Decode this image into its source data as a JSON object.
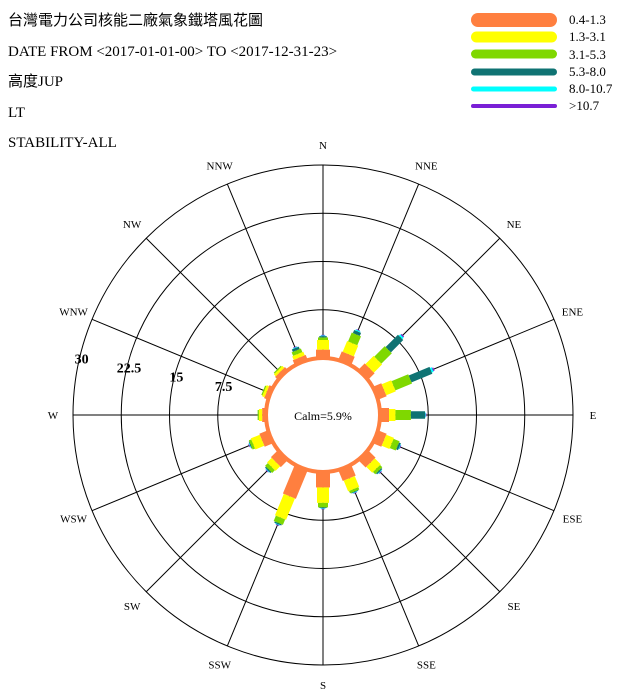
{
  "header": {
    "title": "台灣電力公司核能二廠氣象鐵塔風花圖",
    "date_range": "DATE FROM <2017-01-01-00> TO <2017-12-31-23>",
    "height": "高度JUP",
    "time": "LT",
    "stability": "STABILITY-ALL"
  },
  "legend": [
    {
      "label": "0.4-1.3",
      "color": "#ff7f3f"
    },
    {
      "label": "1.3-3.1",
      "color": "#ffff00"
    },
    {
      "label": "3.1-5.3",
      "color": "#7fd800"
    },
    {
      "label": "5.3-8.0",
      "color": "#0f7373"
    },
    {
      "label": "8.0-10.7",
      "color": "#00ffff"
    },
    {
      "label": ">10.7",
      "color": "#7a1fd6"
    }
  ],
  "chart_data": {
    "type": "windrose",
    "calm": "Calm=5.9%",
    "radial_ticks": [
      "7.5",
      "15",
      "22.5",
      "30"
    ],
    "radial_values": [
      7.5,
      15,
      22.5,
      30
    ],
    "rmax": 30,
    "directions": [
      "N",
      "NNE",
      "NE",
      "ENE",
      "E",
      "ESE",
      "SE",
      "SSE",
      "S",
      "SSW",
      "SW",
      "WSW",
      "W",
      "WNW",
      "NW",
      "NNW"
    ],
    "series": [
      {
        "name": "0.4-1.3",
        "values": [
          1.3,
          1.4,
          1.4,
          1.4,
          1.4,
          1.4,
          1.6,
          1.8,
          2.4,
          4.8,
          1.5,
          1.4,
          0.6,
          0.6,
          0.6,
          0.8
        ]
      },
      {
        "name": "1.3-3.1",
        "values": [
          1.5,
          1.8,
          1.8,
          1.6,
          1.0,
          1.3,
          1.3,
          1.8,
          2.4,
          3.6,
          1.0,
          1.5,
          0.5,
          0.4,
          0.4,
          0.6
        ]
      },
      {
        "name": "3.1-5.3",
        "values": [
          0.4,
          1.5,
          2.3,
          2.8,
          2.4,
          1.0,
          0.5,
          0.4,
          0.7,
          0.9,
          0.6,
          0.4,
          0.2,
          0.2,
          0.2,
          0.6
        ]
      },
      {
        "name": "5.3-8.0",
        "values": [
          0.2,
          0.5,
          2.7,
          3.5,
          2.2,
          0.3,
          0.2,
          0.1,
          0.1,
          0.2,
          0.2,
          0.1,
          0.0,
          0.0,
          0.0,
          0.4
        ]
      },
      {
        "name": "8.0-10.7",
        "values": [
          0.1,
          0.2,
          0.3,
          0.3,
          0.1,
          0.1,
          0.1,
          0.1,
          0.1,
          0.1,
          0.1,
          0.1,
          0.0,
          0.0,
          0.0,
          0.1
        ]
      },
      {
        "name": ">10.7",
        "values": [
          0.1,
          0.1,
          0.2,
          0.2,
          0.1,
          0.1,
          0.1,
          0.1,
          0.1,
          0.1,
          0.1,
          0.1,
          0.0,
          0.0,
          0.0,
          0.1
        ]
      }
    ]
  }
}
